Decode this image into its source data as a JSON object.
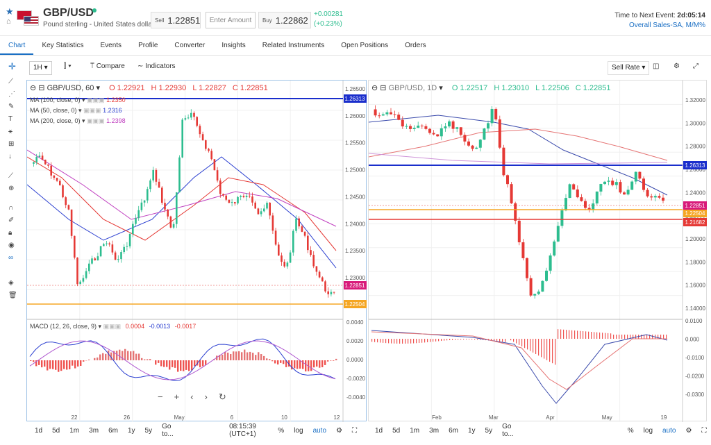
{
  "header": {
    "pair": "GBP/USD",
    "pair_desc": "Pound sterling - United States dollar",
    "sell_label": "Sell",
    "sell_value": "1.22851",
    "amount_placeholder": "Enter Amount",
    "buy_label": "Buy",
    "buy_value": "1.22862",
    "change_abs": "+0.00281",
    "change_pct": "(+0.23%)",
    "event_label": "Time to Next Event:",
    "event_time": "2d:05:14",
    "event_link": "Overall Sales-SA, M/M%"
  },
  "tabs": [
    "Chart",
    "Key Statistics",
    "Events",
    "Profile",
    "Converter",
    "Insights",
    "Related Instruments",
    "Open Positions",
    "Orders"
  ],
  "toolbar": {
    "interval": "1H",
    "compare": "Compare",
    "indicators": "Indicators",
    "rate": "Sell Rate"
  },
  "left_chart": {
    "title": "GBP/USD, 60",
    "o": "O 1.22921",
    "h": "H 1.22930",
    "l": "L 1.22827",
    "c": "C 1.22851",
    "ma100": "MA (100, close, 0)",
    "ma100_val": "1.2350",
    "ma50": "MA (50, close, 0)",
    "ma50_val": "1.2316",
    "ma200": "MA (200, close, 0)",
    "ma200_val": "1.2398",
    "macd": "MACD (12, 26, close, 9)",
    "macd_v1": "0.0004",
    "macd_v2": "-0.0013",
    "macd_v3": "-0.0017",
    "price_ticks": [
      "1.26500",
      "1.26000",
      "1.25500",
      "1.25000",
      "1.24500",
      "1.24000",
      "1.23500",
      "1.23000"
    ],
    "macd_ticks": [
      "0.0040",
      "0.0020",
      "0.0000",
      "-0.0020",
      "-0.0040"
    ],
    "x_ticks": [
      "22",
      "26",
      "May",
      "6",
      "10",
      "12"
    ],
    "level_blue": "1.26313",
    "level_price": "1.22851",
    "level_orange": "1.22504"
  },
  "right_chart": {
    "title": "GBP/USD, 1D",
    "o": "O 1.22517",
    "h": "H 1.23010",
    "l": "L 1.22506",
    "c": "C 1.22851",
    "price_ticks": [
      "1.32000",
      "1.30000",
      "1.28000",
      "1.26000",
      "1.24000",
      "1.22000",
      "1.20000",
      "1.18000",
      "1.16000",
      "1.14000"
    ],
    "macd_ticks": [
      "0.0100",
      "0.000",
      "-0.0100",
      "-0.0200",
      "-0.0300"
    ],
    "x_ticks": [
      "Feb",
      "Mar",
      "Apr",
      "May",
      "19"
    ],
    "level_blue": "1.26313",
    "level_price": "1.22851",
    "level_orange": "1.22504",
    "level_red": "1.21682"
  },
  "bottom_left": {
    "ranges": [
      "1d",
      "5d",
      "1m",
      "3m",
      "6m",
      "1y",
      "5y",
      "Go to..."
    ],
    "time": "08:15:39 (UTC+1)",
    "pct": "%",
    "log": "log",
    "auto": "auto"
  },
  "bottom_right": {
    "ranges": [
      "1d",
      "5d",
      "1m",
      "3m",
      "6m",
      "1y",
      "5y",
      "Go to..."
    ],
    "pct": "%",
    "log": "log",
    "auto": "auto"
  },
  "colors": {
    "accent": "#1a6fc4",
    "up": "#2dbd8f",
    "down": "#e53935",
    "blue_level": "#1a2ecc",
    "orange_level": "#f5a623",
    "red_level": "#e53935"
  }
}
